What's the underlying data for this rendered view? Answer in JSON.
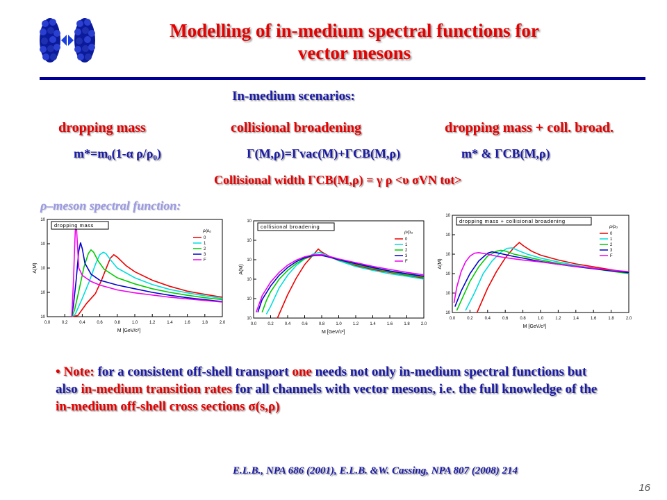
{
  "header": {
    "title_line1": "Modelling of in-medium spectral functions for",
    "title_line2": "vector mesons"
  },
  "scenarios": {
    "heading": "In-medium scenarios:",
    "col1_label": "dropping mass",
    "col2_label": "collisional broadening",
    "col3_label": "dropping mass + coll. broad.",
    "col1_formula": "m*=m₀(1-α ρ/ρ₀)",
    "col2_formula": "Γ(M,ρ)=Γvac(M)+ΓCB(M,ρ)",
    "col3_formula": "m* & ΓCB(M,ρ)",
    "width_formula": "Collisional width ΓCB(M,ρ) = γ ρ <υ σVN tot>"
  },
  "spectral_heading": "ρ–meson spectral function:",
  "note": {
    "bullet": "•",
    "t1": "Note:",
    "t2": "for a consistent off-shell transport",
    "t3": "one",
    "t4": "needs",
    "t5": "not only in-medium spectral functions but also",
    "t6": "in-medium transition rates",
    "t7": "for all channels  with vector mesons, i.e. the full knowledge of the",
    "t8": "in-medium off-shell cross sections σ(s,ρ)"
  },
  "reference": "E.L.B., NPA 686 (2001),    E.L.B. &W. Cassing, NPA 807 (2008) 214",
  "page_number": "16",
  "colors": {
    "title_red": "#e60000",
    "text_blue": "#1a1aa6",
    "rule_navy": "#000099",
    "curve_0": "#ee0000",
    "curve_1": "#00dddd",
    "curve_2": "#00cc00",
    "curve_3": "#0000cc",
    "curve_F": "#ee00ee"
  },
  "chart_data": [
    {
      "type": "line",
      "title": "dropping mass",
      "xlabel": "M  [GeV/c²]",
      "ylabel": "A(M)",
      "xlim": [
        0.0,
        2.0
      ],
      "ylim": [
        0,
        4
      ],
      "xticks": [
        "0.0",
        "0.2",
        "0.4",
        "0.6",
        "0.8",
        "1.0",
        "1.2",
        "1.4",
        "1.6",
        "1.8",
        "2.0"
      ],
      "yticks": [
        "10",
        "10",
        "10",
        "10",
        "10"
      ],
      "legend_title": "ρ/ρ₀",
      "series": [
        {
          "name": "0",
          "x": [
            0.28,
            0.35,
            0.45,
            0.55,
            0.62,
            0.68,
            0.72,
            0.76,
            0.8,
            0.9,
            1.0,
            1.2,
            1.4,
            1.6,
            1.8,
            2.0
          ],
          "y": [
            0.0,
            0.05,
            0.55,
            0.95,
            1.5,
            2.05,
            2.4,
            2.55,
            2.45,
            2.1,
            1.85,
            1.5,
            1.25,
            1.05,
            0.92,
            0.8
          ]
        },
        {
          "name": "1",
          "x": [
            0.28,
            0.32,
            0.4,
            0.48,
            0.55,
            0.6,
            0.64,
            0.67,
            0.72,
            0.8,
            1.0,
            1.2,
            1.4,
            1.6,
            1.8,
            2.0
          ],
          "y": [
            0.0,
            0.1,
            0.75,
            1.45,
            2.15,
            2.55,
            2.65,
            2.6,
            2.35,
            2.0,
            1.6,
            1.32,
            1.12,
            0.98,
            0.86,
            0.75
          ]
        },
        {
          "name": "2",
          "x": [
            0.28,
            0.31,
            0.36,
            0.42,
            0.47,
            0.5,
            0.53,
            0.58,
            0.65,
            0.8,
            1.0,
            1.2,
            1.4,
            1.6,
            1.8,
            2.0
          ],
          "y": [
            0.0,
            0.25,
            1.05,
            2.05,
            2.6,
            2.75,
            2.65,
            2.3,
            1.95,
            1.6,
            1.35,
            1.15,
            1.0,
            0.88,
            0.78,
            0.7
          ]
        },
        {
          "name": "3",
          "x": [
            0.28,
            0.3,
            0.33,
            0.36,
            0.38,
            0.4,
            0.43,
            0.5,
            0.6,
            0.8,
            1.0,
            1.2,
            1.4,
            1.6,
            1.8,
            2.0
          ],
          "y": [
            0.0,
            0.5,
            1.5,
            2.7,
            3.05,
            2.8,
            2.2,
            1.75,
            1.5,
            1.3,
            1.15,
            1.0,
            0.88,
            0.78,
            0.7,
            0.62
          ]
        },
        {
          "name": "F",
          "x": [
            0.28,
            0.3,
            0.31,
            0.32,
            0.33,
            0.34,
            0.36,
            0.4,
            0.5,
            0.6,
            0.8,
            1.0,
            1.4,
            2.0
          ],
          "y": [
            0.0,
            1.5,
            2.6,
            3.5,
            3.9,
            3.3,
            2.0,
            1.7,
            1.45,
            1.3,
            1.1,
            0.98,
            0.8,
            0.6
          ]
        }
      ]
    },
    {
      "type": "line",
      "title": "collisional broadening",
      "xlabel": "M  [GeV/c²]",
      "ylabel": "A(M)",
      "xlim": [
        0.0,
        2.0
      ],
      "ylim": [
        0,
        5
      ],
      "xticks": [
        "0.0",
        "0.2",
        "0.4",
        "0.6",
        "0.8",
        "1.0",
        "1.2",
        "1.4",
        "1.6",
        "1.8",
        "2.0"
      ],
      "yticks": [
        "10",
        "10",
        "10",
        "10",
        "10",
        "10"
      ],
      "legend_title": "ρ/ρ₀",
      "series": [
        {
          "name": "0",
          "x": [
            0.28,
            0.4,
            0.5,
            0.6,
            0.7,
            0.76,
            0.8,
            0.9,
            1.0,
            1.2,
            1.4,
            1.6,
            1.8,
            2.0
          ],
          "y": [
            0.0,
            1.2,
            2.05,
            2.75,
            3.25,
            3.55,
            3.4,
            3.15,
            2.95,
            2.7,
            2.5,
            2.35,
            2.2,
            2.05
          ]
        },
        {
          "name": "1",
          "x": [
            0.15,
            0.2,
            0.3,
            0.4,
            0.5,
            0.6,
            0.7,
            0.78,
            0.9,
            1.0,
            1.2,
            1.4,
            1.6,
            1.8,
            2.0
          ],
          "y": [
            0.2,
            0.6,
            1.55,
            2.2,
            2.7,
            3.05,
            3.3,
            3.38,
            3.15,
            2.95,
            2.65,
            2.45,
            2.28,
            2.15,
            2.0
          ]
        },
        {
          "name": "2",
          "x": [
            0.1,
            0.15,
            0.2,
            0.3,
            0.4,
            0.5,
            0.6,
            0.7,
            0.8,
            0.9,
            1.0,
            1.2,
            1.4,
            1.6,
            1.8,
            2.0
          ],
          "y": [
            0.3,
            0.9,
            1.35,
            2.0,
            2.45,
            2.8,
            3.05,
            3.2,
            3.25,
            3.12,
            2.98,
            2.75,
            2.55,
            2.38,
            2.22,
            2.1
          ]
        },
        {
          "name": "3",
          "x": [
            0.05,
            0.1,
            0.2,
            0.3,
            0.4,
            0.5,
            0.6,
            0.7,
            0.8,
            0.9,
            1.0,
            1.2,
            1.4,
            1.6,
            1.8,
            2.0
          ],
          "y": [
            0.3,
            0.95,
            1.65,
            2.2,
            2.6,
            2.9,
            3.1,
            3.22,
            3.22,
            3.12,
            3.0,
            2.8,
            2.6,
            2.42,
            2.28,
            2.15
          ]
        },
        {
          "name": "F",
          "x": [
            0.03,
            0.1,
            0.2,
            0.3,
            0.4,
            0.5,
            0.6,
            0.7,
            0.8,
            0.9,
            1.0,
            1.2,
            1.4,
            1.6,
            1.8,
            2.0
          ],
          "y": [
            0.3,
            1.15,
            1.85,
            2.35,
            2.72,
            2.98,
            3.15,
            3.25,
            3.26,
            3.16,
            3.04,
            2.85,
            2.66,
            2.5,
            2.35,
            2.22
          ]
        }
      ]
    },
    {
      "type": "line",
      "title": "dropping mass + collisional broadening",
      "xlabel": "M  [GeV/c²]",
      "ylabel": "A(M)",
      "xlim": [
        0.0,
        2.0
      ],
      "ylim": [
        0,
        5
      ],
      "xticks": [
        "0.0",
        "0.2",
        "0.4",
        "0.6",
        "0.8",
        "1.0",
        "1.2",
        "1.4",
        "1.6",
        "1.8",
        "2.0"
      ],
      "yticks": [
        "10",
        "10",
        "10",
        "10",
        "10",
        "10"
      ],
      "legend_title": "ρ/ρ₀",
      "series": [
        {
          "name": "0",
          "x": [
            0.28,
            0.4,
            0.5,
            0.6,
            0.7,
            0.76,
            0.8,
            0.9,
            1.0,
            1.2,
            1.4,
            1.6,
            1.8,
            2.0
          ],
          "y": [
            0.0,
            1.25,
            2.1,
            2.8,
            3.35,
            3.6,
            3.45,
            3.15,
            2.95,
            2.7,
            2.5,
            2.35,
            2.2,
            2.05
          ]
        },
        {
          "name": "1",
          "x": [
            0.15,
            0.25,
            0.35,
            0.45,
            0.55,
            0.62,
            0.68,
            0.75,
            0.85,
            1.0,
            1.2,
            1.4,
            1.6,
            1.8,
            2.0
          ],
          "y": [
            0.1,
            1.0,
            2.0,
            2.65,
            3.1,
            3.3,
            3.32,
            3.18,
            3.0,
            2.8,
            2.6,
            2.42,
            2.28,
            2.15,
            2.02
          ]
        },
        {
          "name": "2",
          "x": [
            0.05,
            0.1,
            0.2,
            0.3,
            0.4,
            0.5,
            0.55,
            0.6,
            0.7,
            0.8,
            1.0,
            1.2,
            1.4,
            1.6,
            1.8,
            2.0
          ],
          "y": [
            0.1,
            0.6,
            1.6,
            2.35,
            2.9,
            3.15,
            3.2,
            3.16,
            3.0,
            2.9,
            2.7,
            2.52,
            2.38,
            2.25,
            2.12,
            2.0
          ]
        },
        {
          "name": "3",
          "x": [
            0.03,
            0.1,
            0.2,
            0.3,
            0.4,
            0.45,
            0.5,
            0.6,
            0.7,
            0.8,
            1.0,
            1.2,
            1.4,
            1.6,
            1.8,
            2.0
          ],
          "y": [
            0.3,
            1.1,
            2.0,
            2.65,
            3.05,
            3.12,
            3.08,
            2.98,
            2.88,
            2.8,
            2.62,
            2.48,
            2.36,
            2.25,
            2.15,
            2.05
          ]
        },
        {
          "name": "F",
          "x": [
            0.02,
            0.05,
            0.1,
            0.15,
            0.2,
            0.25,
            0.3,
            0.4,
            0.5,
            0.6,
            0.8,
            1.0,
            1.2,
            1.4,
            1.6,
            1.8,
            2.0
          ],
          "y": [
            0.5,
            1.3,
            2.1,
            2.6,
            2.9,
            3.05,
            3.08,
            3.0,
            2.9,
            2.82,
            2.7,
            2.6,
            2.48,
            2.38,
            2.28,
            2.18,
            2.1
          ]
        }
      ]
    }
  ]
}
